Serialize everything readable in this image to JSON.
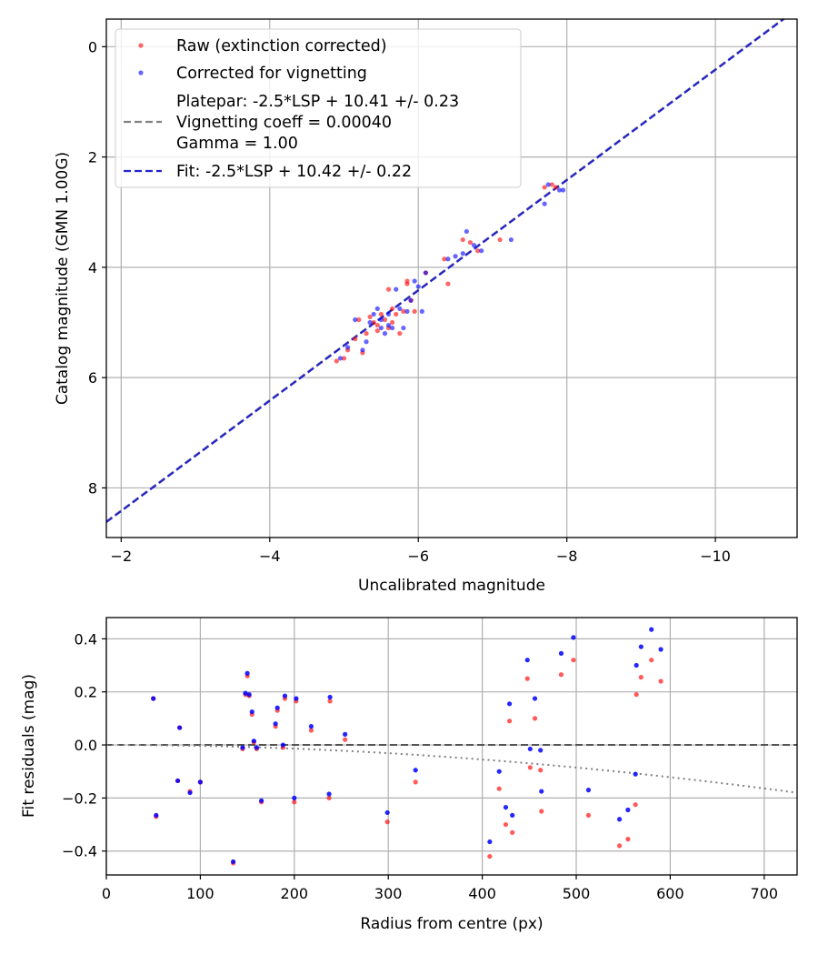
{
  "colors": {
    "raw": "#ff0000",
    "corrected": "#0000ff",
    "platepar_line": "#808080",
    "fit_line": "#2323cc",
    "zero_line": "#555555",
    "vignetting_curve": "#808080",
    "grid": "#b0b0b0"
  },
  "chart_data": [
    {
      "type": "scatter",
      "xlabel": "Uncalibrated magnitude",
      "ylabel": "Catalog magnitude (GMN 1.00G)",
      "xlim": [
        -1.8,
        -11.1
      ],
      "ylim": [
        8.9,
        -0.5
      ],
      "x_inverted": true,
      "y_inverted": true,
      "grid": true,
      "xticks": [
        -2,
        -4,
        -6,
        -8,
        -10
      ],
      "xtick_labels": [
        "−2",
        "−4",
        "−6",
        "−8",
        "−10"
      ],
      "yticks": [
        0,
        2,
        4,
        6,
        8
      ],
      "ytick_labels": [
        "0",
        "2",
        "4",
        "6",
        "8"
      ],
      "legend_position": "top-left",
      "legend": [
        {
          "kind": "marker",
          "color": "#ff0000",
          "label": "Raw (extinction corrected)"
        },
        {
          "kind": "marker",
          "color": "#0000ff",
          "label": "Corrected for vignetting"
        },
        {
          "kind": "dash",
          "color": "#808080",
          "lines": [
            "Platepar: -2.5*LSP + 10.41 +/- 0.23",
            "Vignetting coeff = 0.00040",
            "Gamma = 1.00"
          ]
        },
        {
          "kind": "dash",
          "color": "#2323cc",
          "lines": [
            "Fit: -2.5*LSP + 10.42 +/- 0.22"
          ]
        }
      ],
      "lines": [
        {
          "name": "Platepar",
          "slope": 1,
          "intercept": 10.41,
          "color": "#808080",
          "style": "dashed"
        },
        {
          "name": "Fit",
          "slope": 1,
          "intercept": 10.42,
          "color": "#2323cc",
          "style": "dashed"
        }
      ],
      "series": [
        {
          "name": "Raw (extinction corrected)",
          "color": "#ff0000",
          "points": [
            [
              -4.9,
              5.7
            ],
            [
              -5.0,
              5.65
            ],
            [
              -5.05,
              5.5
            ],
            [
              -5.15,
              5.3
            ],
            [
              -5.2,
              4.95
            ],
            [
              -5.25,
              5.55
            ],
            [
              -5.3,
              5.2
            ],
            [
              -5.35,
              4.9
            ],
            [
              -5.4,
              5.0
            ],
            [
              -5.45,
              5.15
            ],
            [
              -5.5,
              4.85
            ],
            [
              -5.55,
              4.95
            ],
            [
              -5.6,
              5.1
            ],
            [
              -5.6,
              4.4
            ],
            [
              -5.65,
              5.0
            ],
            [
              -5.7,
              4.85
            ],
            [
              -5.75,
              5.2
            ],
            [
              -5.8,
              4.8
            ],
            [
              -5.85,
              4.3
            ],
            [
              -5.85,
              4.25
            ],
            [
              -5.9,
              4.6
            ],
            [
              -5.95,
              4.8
            ],
            [
              -6.1,
              4.1
            ],
            [
              -6.35,
              3.85
            ],
            [
              -6.4,
              4.3
            ],
            [
              -6.6,
              3.5
            ],
            [
              -6.7,
              3.55
            ],
            [
              -6.8,
              3.7
            ],
            [
              -7.1,
              3.5
            ],
            [
              -7.7,
              2.55
            ],
            [
              -7.8,
              2.5
            ],
            [
              -7.85,
              2.55
            ],
            [
              -5.45,
              5.05
            ],
            [
              -5.65,
              4.75
            ]
          ]
        },
        {
          "name": "Corrected for vignetting",
          "color": "#0000ff",
          "points": [
            [
              -4.95,
              5.65
            ],
            [
              -5.05,
              5.45
            ],
            [
              -5.15,
              4.95
            ],
            [
              -5.25,
              5.5
            ],
            [
              -5.3,
              5.35
            ],
            [
              -5.35,
              5.0
            ],
            [
              -5.4,
              4.85
            ],
            [
              -5.45,
              4.75
            ],
            [
              -5.5,
              5.1
            ],
            [
              -5.55,
              5.2
            ],
            [
              -5.6,
              4.85
            ],
            [
              -5.65,
              5.1
            ],
            [
              -5.7,
              4.4
            ],
            [
              -5.75,
              4.75
            ],
            [
              -5.8,
              5.1
            ],
            [
              -5.85,
              4.8
            ],
            [
              -5.9,
              4.6
            ],
            [
              -5.95,
              4.25
            ],
            [
              -6.0,
              4.35
            ],
            [
              -6.05,
              4.8
            ],
            [
              -6.1,
              4.1
            ],
            [
              -6.4,
              3.85
            ],
            [
              -6.5,
              3.8
            ],
            [
              -6.6,
              3.75
            ],
            [
              -6.65,
              3.35
            ],
            [
              -6.75,
              3.6
            ],
            [
              -6.85,
              3.7
            ],
            [
              -7.25,
              3.5
            ],
            [
              -7.7,
              2.85
            ],
            [
              -7.75,
              2.5
            ],
            [
              -7.9,
              2.6
            ],
            [
              -7.95,
              2.6
            ],
            [
              -5.5,
              4.95
            ],
            [
              -5.6,
              5.05
            ]
          ]
        }
      ]
    },
    {
      "type": "scatter",
      "xlabel": "Radius from centre (px)",
      "ylabel": "Fit residuals (mag)",
      "xlim": [
        0,
        735
      ],
      "ylim": [
        -0.49,
        0.48
      ],
      "grid": true,
      "xticks": [
        0,
        100,
        200,
        300,
        400,
        500,
        600,
        700
      ],
      "xtick_labels": [
        "0",
        "100",
        "200",
        "300",
        "400",
        "500",
        "600",
        "700"
      ],
      "yticks": [
        -0.4,
        -0.2,
        0.0,
        0.2,
        0.4
      ],
      "ytick_labels": [
        "−0.4",
        "−0.2",
        "0.0",
        "0.2",
        "0.4"
      ],
      "reference_line": {
        "y": 0,
        "color": "#555555",
        "style": "dashed"
      },
      "vignetting_curve": {
        "coeff": 0.0004,
        "color": "#808080",
        "style": "dotted"
      },
      "series": [
        {
          "name": "Raw (extinction corrected)",
          "color": "#ff0000",
          "points": [
            [
              50,
              0.175
            ],
            [
              53,
              -0.27
            ],
            [
              76,
              -0.135
            ],
            [
              78,
              0.065
            ],
            [
              89,
              -0.175
            ],
            [
              100,
              -0.14
            ],
            [
              135,
              -0.445
            ],
            [
              145,
              -0.015
            ],
            [
              148,
              0.19
            ],
            [
              150,
              0.26
            ],
            [
              152,
              0.185
            ],
            [
              155,
              0.115
            ],
            [
              157,
              0.01
            ],
            [
              160,
              -0.015
            ],
            [
              165,
              -0.215
            ],
            [
              180,
              0.07
            ],
            [
              182,
              0.13
            ],
            [
              188,
              -0.01
            ],
            [
              190,
              0.175
            ],
            [
              200,
              -0.215
            ],
            [
              202,
              0.165
            ],
            [
              218,
              0.055
            ],
            [
              237,
              -0.2
            ],
            [
              238,
              0.165
            ],
            [
              254,
              0.02
            ],
            [
              299,
              -0.29
            ],
            [
              329,
              -0.14
            ],
            [
              408,
              -0.42
            ],
            [
              418,
              -0.165
            ],
            [
              425,
              -0.3
            ],
            [
              429,
              0.09
            ],
            [
              432,
              -0.33
            ],
            [
              448,
              0.25
            ],
            [
              451,
              -0.085
            ],
            [
              456,
              0.1
            ],
            [
              462,
              -0.095
            ],
            [
              463,
              -0.25
            ],
            [
              484,
              0.265
            ],
            [
              497,
              0.32
            ],
            [
              513,
              -0.265
            ],
            [
              546,
              -0.38
            ],
            [
              555,
              -0.355
            ],
            [
              563,
              -0.225
            ],
            [
              564,
              0.19
            ],
            [
              569,
              0.255
            ],
            [
              580,
              0.32
            ],
            [
              590,
              0.24
            ]
          ]
        },
        {
          "name": "Corrected for vignetting",
          "color": "#0000ff",
          "points": [
            [
              50,
              0.175
            ],
            [
              53,
              -0.265
            ],
            [
              76,
              -0.135
            ],
            [
              78,
              0.065
            ],
            [
              89,
              -0.18
            ],
            [
              100,
              -0.14
            ],
            [
              135,
              -0.44
            ],
            [
              145,
              -0.01
            ],
            [
              148,
              0.195
            ],
            [
              150,
              0.27
            ],
            [
              152,
              0.19
            ],
            [
              155,
              0.125
            ],
            [
              157,
              0.015
            ],
            [
              160,
              -0.01
            ],
            [
              165,
              -0.21
            ],
            [
              180,
              0.08
            ],
            [
              182,
              0.14
            ],
            [
              188,
              0.0
            ],
            [
              190,
              0.185
            ],
            [
              200,
              -0.2
            ],
            [
              202,
              0.175
            ],
            [
              218,
              0.07
            ],
            [
              237,
              -0.185
            ],
            [
              238,
              0.18
            ],
            [
              254,
              0.04
            ],
            [
              299,
              -0.255
            ],
            [
              329,
              -0.095
            ],
            [
              408,
              -0.365
            ],
            [
              418,
              -0.1
            ],
            [
              425,
              -0.235
            ],
            [
              429,
              0.155
            ],
            [
              432,
              -0.265
            ],
            [
              448,
              0.32
            ],
            [
              451,
              -0.015
            ],
            [
              456,
              0.175
            ],
            [
              462,
              -0.02
            ],
            [
              463,
              -0.175
            ],
            [
              484,
              0.345
            ],
            [
              497,
              0.405
            ],
            [
              513,
              -0.17
            ],
            [
              546,
              -0.28
            ],
            [
              555,
              -0.245
            ],
            [
              563,
              -0.11
            ],
            [
              564,
              0.3
            ],
            [
              569,
              0.37
            ],
            [
              580,
              0.435
            ],
            [
              590,
              0.36
            ]
          ]
        }
      ]
    }
  ]
}
